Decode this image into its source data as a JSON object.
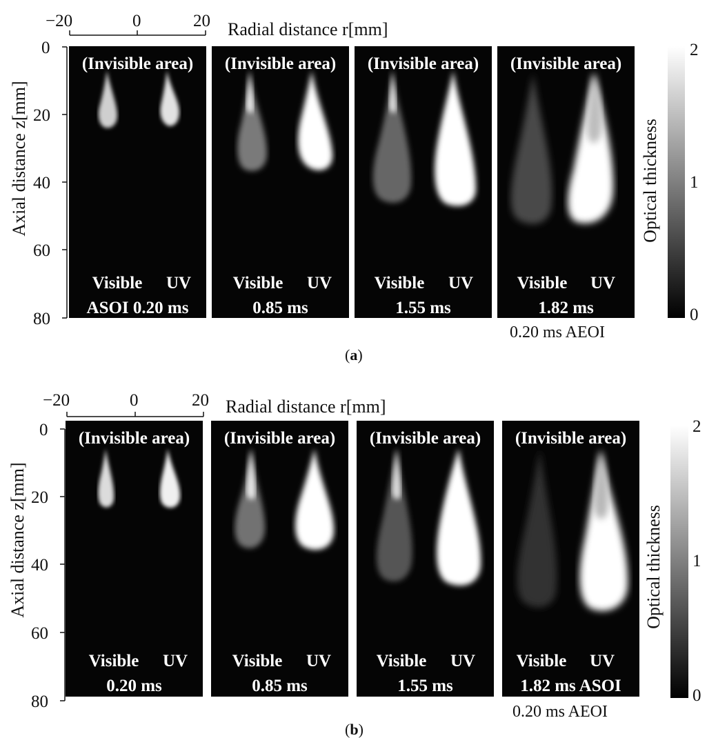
{
  "figures": [
    {
      "id": "a",
      "caption_letter": "a",
      "r_axis": {
        "title": "Radial distance r[mm]",
        "ticks": [
          "−20",
          "0",
          "20"
        ]
      },
      "z_axis": {
        "title": "Axial distance z[mm]",
        "ticks": [
          "0",
          "20",
          "40",
          "60",
          "80"
        ]
      },
      "colorbar": {
        "title": "Optical thickness",
        "max_label": "2",
        "mid_label": "1",
        "min_label": "0"
      },
      "panels": [
        {
          "top_label": "(Invisible area)",
          "visible_label": "Visible",
          "uv_label": "UV",
          "time_label": "ASOI 0.20 ms"
        },
        {
          "top_label": "(Invisible area)",
          "visible_label": "Visible",
          "uv_label": "UV",
          "time_label": "0.85 ms"
        },
        {
          "top_label": "(Invisible area)",
          "visible_label": "Visible",
          "uv_label": "UV",
          "time_label": "1.55 ms"
        },
        {
          "top_label": "(Invisible area)",
          "visible_label": "Visible",
          "uv_label": "UV",
          "time_label": "1.82 ms"
        }
      ],
      "note": "0.20 ms AEOI"
    },
    {
      "id": "b",
      "caption_letter": "b",
      "r_axis": {
        "title": "Radial distance r[mm]",
        "ticks": [
          "−20",
          "0",
          "20"
        ]
      },
      "z_axis": {
        "title": "Axial distance z[mm]",
        "ticks": [
          "0",
          "20",
          "40",
          "60",
          "80"
        ]
      },
      "colorbar": {
        "title": "Optical thickness",
        "max_label": "2",
        "mid_label": "1",
        "min_label": "0"
      },
      "panels": [
        {
          "top_label": "(Invisible area)",
          "visible_label": "Visible",
          "uv_label": "UV",
          "time_label": "0.20 ms"
        },
        {
          "top_label": "(Invisible area)",
          "visible_label": "Visible",
          "uv_label": "UV",
          "time_label": "0.85 ms"
        },
        {
          "top_label": "(Invisible area)",
          "visible_label": "Visible",
          "uv_label": "UV",
          "time_label": "1.55 ms"
        },
        {
          "top_label": "(Invisible area)",
          "visible_label": "Visible",
          "uv_label": "UV",
          "time_label": "1.82 ms ASOI"
        }
      ],
      "note": "0.20 ms AEOI"
    }
  ]
}
